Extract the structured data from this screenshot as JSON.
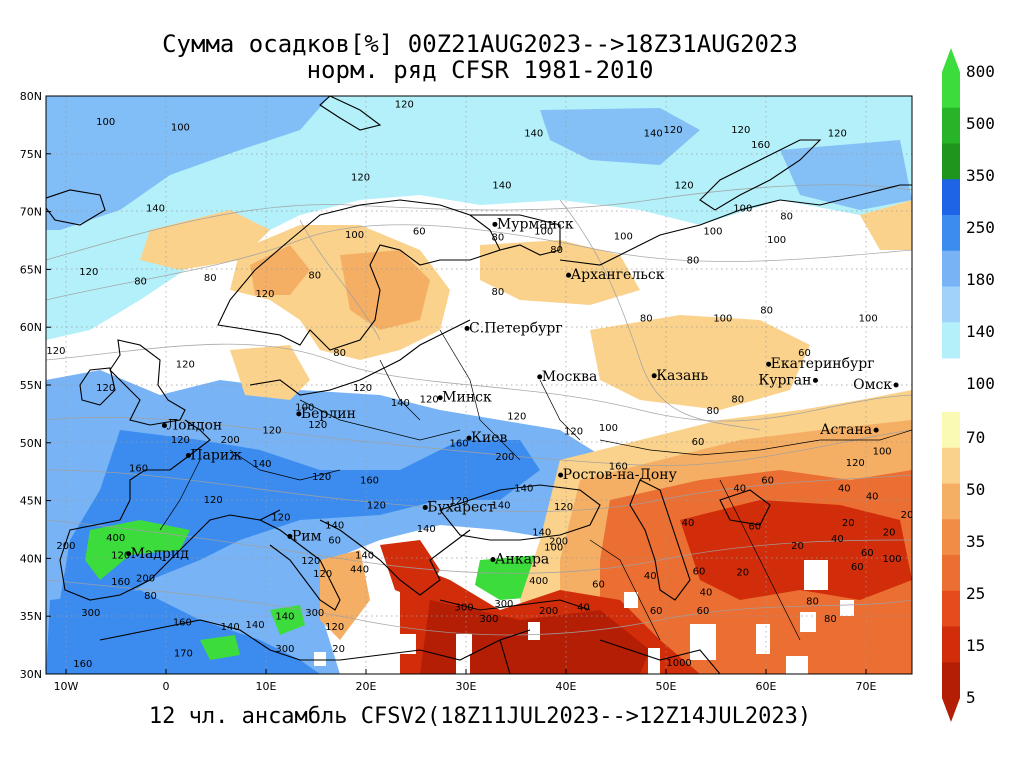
{
  "title_line1": "Сумма осадков[%] 00Z21AUG2023-->18Z31AUG2023",
  "title_line2": "норм. ряд CFSR 1981-2010",
  "footer": "12 чл. ансамбль CFSV2(18Z11JUL2023-->12Z14JUL2023)",
  "lat_labels": [
    "80N",
    "75N",
    "70N",
    "65N",
    "60N",
    "55N",
    "50N",
    "45N",
    "40N",
    "35N",
    "30N"
  ],
  "lon_labels": [
    "10W",
    "0",
    "10E",
    "20E",
    "30E",
    "40E",
    "50E",
    "60E",
    "70E"
  ],
  "cities": [
    {
      "name": "Мурманск",
      "lon": 33.1,
      "lat": 68.9
    },
    {
      "name": "Архангельск",
      "lon": 40.5,
      "lat": 64.5
    },
    {
      "name": "С.Петербург",
      "lon": 30.3,
      "lat": 59.9
    },
    {
      "name": "Москва",
      "lon": 37.6,
      "lat": 55.7
    },
    {
      "name": "Казань",
      "lon": 49.1,
      "lat": 55.8
    },
    {
      "name": "Екатеринбург",
      "lon": 60.6,
      "lat": 56.8
    },
    {
      "name": "Курган",
      "lon": 65.3,
      "lat": 55.4
    },
    {
      "name": "Омск",
      "lon": 73.4,
      "lat": 55.0
    },
    {
      "name": "Астана",
      "lon": 71.4,
      "lat": 51.1
    },
    {
      "name": "Минск",
      "lon": 27.6,
      "lat": 53.9
    },
    {
      "name": "Берлин",
      "lon": 13.4,
      "lat": 52.5
    },
    {
      "name": "Лондон",
      "lon": -0.1,
      "lat": 51.5
    },
    {
      "name": "Париж",
      "lon": 2.3,
      "lat": 48.9
    },
    {
      "name": "Киев",
      "lon": 30.5,
      "lat": 50.4
    },
    {
      "name": "Ростов-на-Дону",
      "lon": 39.7,
      "lat": 47.2
    },
    {
      "name": "Бухарест",
      "lon": 26.1,
      "lat": 44.4
    },
    {
      "name": "Рим",
      "lon": 12.5,
      "lat": 41.9
    },
    {
      "name": "Мадрид",
      "lon": -3.7,
      "lat": 40.4
    },
    {
      "name": "Анкара",
      "lon": 32.9,
      "lat": 39.9
    }
  ],
  "contour_labels": [
    {
      "t": "100",
      "lon": -6,
      "lat": 77.5
    },
    {
      "t": "120",
      "lon": 24,
      "lat": 79
    },
    {
      "t": "140",
      "lon": 37,
      "lat": 76.5
    },
    {
      "t": "140",
      "lon": 49,
      "lat": 76.5
    },
    {
      "t": "120",
      "lon": 51,
      "lat": 76.8
    },
    {
      "t": "120",
      "lon": 57.8,
      "lat": 76.8
    },
    {
      "t": "120",
      "lon": 67.5,
      "lat": 76.5
    },
    {
      "t": "160",
      "lon": 59.8,
      "lat": 75.5
    },
    {
      "t": "100",
      "lon": 1.5,
      "lat": 77
    },
    {
      "t": "120",
      "lon": 19.6,
      "lat": 72.7
    },
    {
      "t": "140",
      "lon": 33.8,
      "lat": 72
    },
    {
      "t": "120",
      "lon": 52.1,
      "lat": 72
    },
    {
      "t": "100",
      "lon": 58,
      "lat": 70
    },
    {
      "t": "100",
      "lon": 38,
      "lat": 68
    },
    {
      "t": "100",
      "lon": 46,
      "lat": 67.6
    },
    {
      "t": "100",
      "lon": 55,
      "lat": 68
    },
    {
      "t": "100",
      "lon": 61.4,
      "lat": 67.3
    },
    {
      "t": "80",
      "lon": 62.4,
      "lat": 69.3
    },
    {
      "t": "140",
      "lon": -1,
      "lat": 70
    },
    {
      "t": "100",
      "lon": 19,
      "lat": 67.7
    },
    {
      "t": "60",
      "lon": 25.5,
      "lat": 68
    },
    {
      "t": "80",
      "lon": 33.4,
      "lat": 67.5
    },
    {
      "t": "80",
      "lon": 39.3,
      "lat": 66.4
    },
    {
      "t": "80",
      "lon": 53,
      "lat": 65.5
    },
    {
      "t": "120",
      "lon": -7.7,
      "lat": 64.5
    },
    {
      "t": "80",
      "lon": -2.5,
      "lat": 63.7
    },
    {
      "t": "80",
      "lon": 4.5,
      "lat": 64
    },
    {
      "t": "80",
      "lon": 15,
      "lat": 64.2
    },
    {
      "t": "120",
      "lon": 10,
      "lat": 62.6
    },
    {
      "t": "80",
      "lon": 33.4,
      "lat": 62.8
    },
    {
      "t": "80",
      "lon": 60.4,
      "lat": 61.2
    },
    {
      "t": "100",
      "lon": 56,
      "lat": 60.5
    },
    {
      "t": "80",
      "lon": 48.3,
      "lat": 60.5
    },
    {
      "t": "100",
      "lon": 70.6,
      "lat": 60.5
    },
    {
      "t": "60",
      "lon": 64.2,
      "lat": 57.5
    },
    {
      "t": "120",
      "lon": -11,
      "lat": 57.7
    },
    {
      "t": "120",
      "lon": 2,
      "lat": 56.5
    },
    {
      "t": "80",
      "lon": 17.5,
      "lat": 57.5
    },
    {
      "t": "120",
      "lon": -6,
      "lat": 54.5
    },
    {
      "t": "120",
      "lon": 19.8,
      "lat": 54.5
    },
    {
      "t": "120",
      "lon": 26.5,
      "lat": 53.5
    },
    {
      "t": "140",
      "lon": 23.6,
      "lat": 53.2
    },
    {
      "t": "120",
      "lon": 15.3,
      "lat": 51.3
    },
    {
      "t": "120",
      "lon": 10.7,
      "lat": 50.8
    },
    {
      "t": "100",
      "lon": 14,
      "lat": 52.8
    },
    {
      "t": "80",
      "lon": 55,
      "lat": 52.5
    },
    {
      "t": "80",
      "lon": 57.5,
      "lat": 53.5
    },
    {
      "t": "100",
      "lon": 44.5,
      "lat": 51
    },
    {
      "t": "60",
      "lon": 53.5,
      "lat": 49.8
    },
    {
      "t": "120",
      "lon": 35.3,
      "lat": 52
    },
    {
      "t": "120",
      "lon": 41,
      "lat": 50.7
    },
    {
      "t": "160",
      "lon": 29.5,
      "lat": 49.7
    },
    {
      "t": "200",
      "lon": 34.1,
      "lat": 48.5
    },
    {
      "t": "160",
      "lon": 45.5,
      "lat": 47.7
    },
    {
      "t": "120",
      "lon": 69.3,
      "lat": 48
    },
    {
      "t": "100",
      "lon": 72,
      "lat": 49
    },
    {
      "t": "120",
      "lon": 1.5,
      "lat": 50
    },
    {
      "t": "200",
      "lon": 6.5,
      "lat": 50
    },
    {
      "t": "140",
      "lon": 9.7,
      "lat": 47.9
    },
    {
      "t": "120",
      "lon": 4.8,
      "lat": 44.8
    },
    {
      "t": "160",
      "lon": -2.7,
      "lat": 47.5
    },
    {
      "t": "120",
      "lon": 15.7,
      "lat": 46.8
    },
    {
      "t": "160",
      "lon": 20.5,
      "lat": 46.5
    },
    {
      "t": "140",
      "lon": 36,
      "lat": 45.8
    },
    {
      "t": "140",
      "lon": 33.7,
      "lat": 44.3
    },
    {
      "t": "120",
      "lon": 40,
      "lat": 44.2
    },
    {
      "t": "40",
      "lon": 57.7,
      "lat": 45.8
    },
    {
      "t": "40",
      "lon": 68.2,
      "lat": 45.8
    },
    {
      "t": "40",
      "lon": 71,
      "lat": 45.1
    },
    {
      "t": "60",
      "lon": 59.2,
      "lat": 42.5
    },
    {
      "t": "20",
      "lon": 63.5,
      "lat": 40.8
    },
    {
      "t": "20",
      "lon": 58,
      "lat": 38.5
    },
    {
      "t": "20",
      "lon": 68.6,
      "lat": 42.8
    },
    {
      "t": "40",
      "lon": 67.5,
      "lat": 41.4
    },
    {
      "t": "40",
      "lon": 52.5,
      "lat": 42.8
    },
    {
      "t": "40",
      "lon": 48.7,
      "lat": 38.2
    },
    {
      "t": "60",
      "lon": 53.6,
      "lat": 38.6
    },
    {
      "t": "40",
      "lon": 54.3,
      "lat": 36.8
    },
    {
      "t": "60",
      "lon": 49.3,
      "lat": 35.2
    },
    {
      "t": "60",
      "lon": 43.5,
      "lat": 37.5
    },
    {
      "t": "40",
      "lon": 42,
      "lat": 35.5
    },
    {
      "t": "200",
      "lon": -10,
      "lat": 40.8
    },
    {
      "t": "400",
      "lon": -5,
      "lat": 41.5
    },
    {
      "t": "120",
      "lon": -4.5,
      "lat": 40
    },
    {
      "t": "160",
      "lon": -4.5,
      "lat": 37.7
    },
    {
      "t": "200",
      "lon": -2,
      "lat": 38
    },
    {
      "t": "300",
      "lon": -7.5,
      "lat": 35
    },
    {
      "t": "80",
      "lon": -1.5,
      "lat": 36.5
    },
    {
      "t": "160",
      "lon": 1.7,
      "lat": 34.2
    },
    {
      "t": "140",
      "lon": 6.5,
      "lat": 33.8
    },
    {
      "t": "140",
      "lon": 9,
      "lat": 34
    },
    {
      "t": "140",
      "lon": 12,
      "lat": 34.7
    },
    {
      "t": "300",
      "lon": 15,
      "lat": 35
    },
    {
      "t": "120",
      "lon": 17,
      "lat": 33.8
    },
    {
      "t": "300",
      "lon": 12,
      "lat": 31.9
    },
    {
      "t": "170",
      "lon": 1.8,
      "lat": 31.5
    },
    {
      "t": "160",
      "lon": -8.3,
      "lat": 30.6
    },
    {
      "t": "20",
      "lon": 17.4,
      "lat": 31.9
    },
    {
      "t": "120",
      "lon": 14.6,
      "lat": 39.5
    },
    {
      "t": "120",
      "lon": 15.8,
      "lat": 38.4
    },
    {
      "t": "140",
      "lon": 17,
      "lat": 42.6
    },
    {
      "t": "120",
      "lon": 11.6,
      "lat": 43.3
    },
    {
      "t": "60",
      "lon": 17,
      "lat": 41.3
    },
    {
      "t": "440",
      "lon": 19.5,
      "lat": 38.8
    },
    {
      "t": "140",
      "lon": 20,
      "lat": 40
    },
    {
      "t": "300",
      "lon": 30,
      "lat": 35.5
    },
    {
      "t": "300",
      "lon": 34,
      "lat": 35.8
    },
    {
      "t": "200",
      "lon": 38.5,
      "lat": 35.2
    },
    {
      "t": "400",
      "lon": 37.5,
      "lat": 37.8
    },
    {
      "t": "100",
      "lon": 39,
      "lat": 40.7
    },
    {
      "t": "140",
      "lon": 37.8,
      "lat": 42
    },
    {
      "t": "120",
      "lon": 29.5,
      "lat": 44.7
    },
    {
      "t": "120",
      "lon": 21.2,
      "lat": 44.3
    },
    {
      "t": "140",
      "lon": 26.2,
      "lat": 42.3
    },
    {
      "t": "200",
      "lon": 39.5,
      "lat": 41.2
    },
    {
      "t": "300",
      "lon": 32.5,
      "lat": 34.5
    },
    {
      "t": "1000",
      "lon": 51.6,
      "lat": 30.7
    },
    {
      "t": "60",
      "lon": 54,
      "lat": 35.2
    },
    {
      "t": "80",
      "lon": 66.8,
      "lat": 34.5
    },
    {
      "t": "80",
      "lon": 65,
      "lat": 36
    },
    {
      "t": "60",
      "lon": 69.5,
      "lat": 39
    },
    {
      "t": "60",
      "lon": 70.5,
      "lat": 40.2
    },
    {
      "t": "100",
      "lon": 73,
      "lat": 39.7
    },
    {
      "t": "20",
      "lon": 74.5,
      "lat": 43.5
    },
    {
      "t": "60",
      "lon": 60.5,
      "lat": 46.5
    },
    {
      "t": "20",
      "lon": 72.7,
      "lat": 42
    }
  ],
  "legend": {
    "top_labels": [
      "800",
      "500",
      "350",
      "250",
      "180",
      "140"
    ],
    "mid_label": "100",
    "bottom_labels": [
      "70",
      "50",
      "35",
      "25",
      "15",
      "5"
    ],
    "colors_top": [
      "#3cdc3c",
      "#28b428",
      "#1e961e",
      "#1e64e6",
      "#3c8cf0",
      "#78b4f5",
      "#a0d2fa",
      "#b4f0fa"
    ],
    "colors_bottom": [
      "#fafab4",
      "#fad28c",
      "#f5af64",
      "#f08c46",
      "#eb6e32",
      "#e64b1e",
      "#d22d0a",
      "#b41e05"
    ]
  },
  "colors": {
    "sea_green": "#3cdc3c",
    "blue_dark": "#3c8cf0",
    "blue_mid": "#78b4f5",
    "blue_light": "#b4f0fa",
    "cream": "#fafab4",
    "orange_light": "#fad28c",
    "orange_mid": "#f5af64",
    "orange": "#f08c46",
    "red_orange": "#eb6e32",
    "red": "#d22d0a",
    "dark_red": "#b41e05"
  }
}
